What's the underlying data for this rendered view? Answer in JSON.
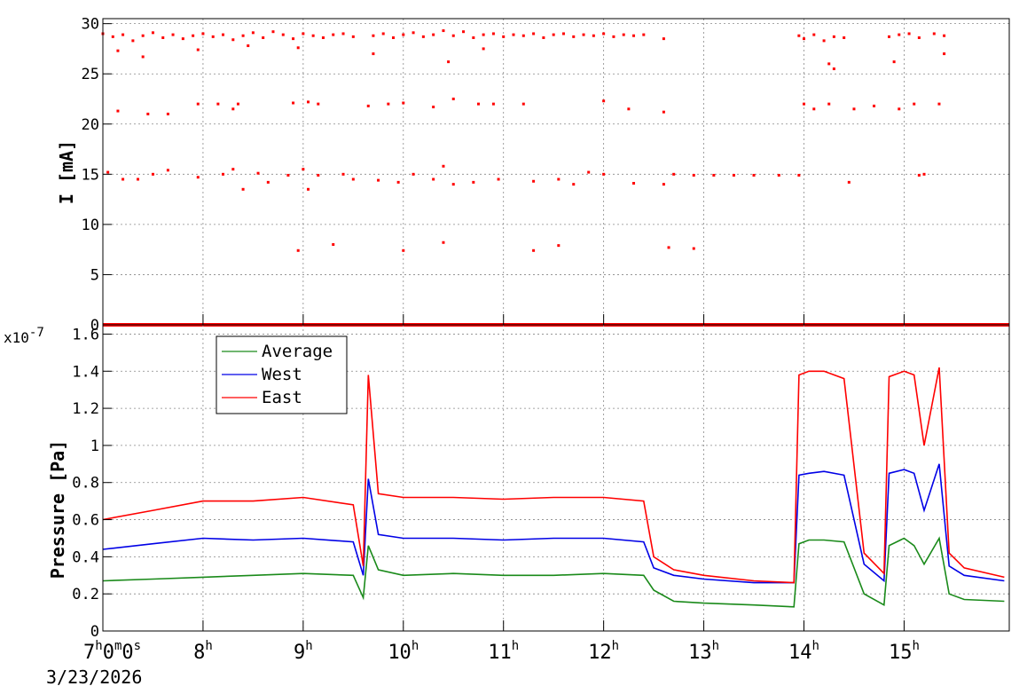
{
  "chart_data": [
    {
      "type": "scatter",
      "ylabel": "I [mA]",
      "ylim": [
        0,
        30.5
      ],
      "yticks": [
        0,
        5,
        10,
        15,
        20,
        25,
        30
      ],
      "grid": true,
      "xlim_hours": [
        7.0,
        16.05
      ],
      "series": [
        {
          "color": "#ff0000",
          "points": [
            [
              7.0,
              29.0
            ],
            [
              7.1,
              28.7
            ],
            [
              7.2,
              28.9
            ],
            [
              7.3,
              28.3
            ],
            [
              7.4,
              28.8
            ],
            [
              7.5,
              29.1
            ],
            [
              7.6,
              28.6
            ],
            [
              7.7,
              28.9
            ],
            [
              7.8,
              28.5
            ],
            [
              7.9,
              28.8
            ],
            [
              8.0,
              29.0
            ],
            [
              8.1,
              28.7
            ],
            [
              8.2,
              28.9
            ],
            [
              8.3,
              28.4
            ],
            [
              8.4,
              28.8
            ],
            [
              8.5,
              29.1
            ],
            [
              8.6,
              28.6
            ],
            [
              8.7,
              29.2
            ],
            [
              8.8,
              28.9
            ],
            [
              8.9,
              28.5
            ],
            [
              9.0,
              29.0
            ],
            [
              9.1,
              28.8
            ],
            [
              9.2,
              28.6
            ],
            [
              9.3,
              28.9
            ],
            [
              9.4,
              29.0
            ],
            [
              9.5,
              28.7
            ],
            [
              9.7,
              28.8
            ],
            [
              9.8,
              29.0
            ],
            [
              9.9,
              28.6
            ],
            [
              10.0,
              28.9
            ],
            [
              10.1,
              29.1
            ],
            [
              10.2,
              28.7
            ],
            [
              10.3,
              28.9
            ],
            [
              10.4,
              29.3
            ],
            [
              10.5,
              28.8
            ],
            [
              10.6,
              29.2
            ],
            [
              10.7,
              28.6
            ],
            [
              10.8,
              28.9
            ],
            [
              10.9,
              29.0
            ],
            [
              11.0,
              28.7
            ],
            [
              11.1,
              28.9
            ],
            [
              11.2,
              28.8
            ],
            [
              11.3,
              29.0
            ],
            [
              11.4,
              28.6
            ],
            [
              11.5,
              28.9
            ],
            [
              11.6,
              29.0
            ],
            [
              11.7,
              28.7
            ],
            [
              11.8,
              28.9
            ],
            [
              11.9,
              28.8
            ],
            [
              12.0,
              29.0
            ],
            [
              12.1,
              28.7
            ],
            [
              12.2,
              28.9
            ],
            [
              12.3,
              28.8
            ],
            [
              12.4,
              28.9
            ],
            [
              12.6,
              28.5
            ],
            [
              13.95,
              28.8
            ],
            [
              14.0,
              28.5
            ],
            [
              14.1,
              28.9
            ],
            [
              14.2,
              28.3
            ],
            [
              14.3,
              28.7
            ],
            [
              14.4,
              28.6
            ],
            [
              14.85,
              28.7
            ],
            [
              14.95,
              28.9
            ],
            [
              15.05,
              29.0
            ],
            [
              15.15,
              28.6
            ],
            [
              15.3,
              29.0
            ],
            [
              15.4,
              28.8
            ],
            [
              7.15,
              27.3
            ],
            [
              7.4,
              26.7
            ],
            [
              7.95,
              27.4
            ],
            [
              8.45,
              27.8
            ],
            [
              8.95,
              27.6
            ],
            [
              9.7,
              27.0
            ],
            [
              10.45,
              26.2
            ],
            [
              10.8,
              27.5
            ],
            [
              14.25,
              26.0
            ],
            [
              14.3,
              25.5
            ],
            [
              14.9,
              26.2
            ],
            [
              15.4,
              27.0
            ],
            [
              7.15,
              21.3
            ],
            [
              7.45,
              21.0
            ],
            [
              7.65,
              21.0
            ],
            [
              7.95,
              22.0
            ],
            [
              8.15,
              22.0
            ],
            [
              8.3,
              21.5
            ],
            [
              8.35,
              22.0
            ],
            [
              8.9,
              22.1
            ],
            [
              9.05,
              22.2
            ],
            [
              9.15,
              22.0
            ],
            [
              9.65,
              21.8
            ],
            [
              9.85,
              22.0
            ],
            [
              10.0,
              22.1
            ],
            [
              10.3,
              21.7
            ],
            [
              10.5,
              22.5
            ],
            [
              10.75,
              22.0
            ],
            [
              10.9,
              22.0
            ],
            [
              11.2,
              22.0
            ],
            [
              12.0,
              22.3
            ],
            [
              12.25,
              21.5
            ],
            [
              12.6,
              21.2
            ],
            [
              14.0,
              22.0
            ],
            [
              14.1,
              21.5
            ],
            [
              14.25,
              22.0
            ],
            [
              14.5,
              21.5
            ],
            [
              14.7,
              21.8
            ],
            [
              14.95,
              21.5
            ],
            [
              15.1,
              22.0
            ],
            [
              15.35,
              22.0
            ],
            [
              7.05,
              15.2
            ],
            [
              7.2,
              14.5
            ],
            [
              7.35,
              14.5
            ],
            [
              7.5,
              15.0
            ],
            [
              7.65,
              15.4
            ],
            [
              7.95,
              14.7
            ],
            [
              8.2,
              15.0
            ],
            [
              8.3,
              15.5
            ],
            [
              8.4,
              13.5
            ],
            [
              8.55,
              15.1
            ],
            [
              8.65,
              14.2
            ],
            [
              8.85,
              14.9
            ],
            [
              9.0,
              15.5
            ],
            [
              9.05,
              13.5
            ],
            [
              9.15,
              14.9
            ],
            [
              9.4,
              15.0
            ],
            [
              9.5,
              14.5
            ],
            [
              9.75,
              14.4
            ],
            [
              9.95,
              14.2
            ],
            [
              10.1,
              15.0
            ],
            [
              10.3,
              14.5
            ],
            [
              10.4,
              15.8
            ],
            [
              10.5,
              14.0
            ],
            [
              10.7,
              14.2
            ],
            [
              10.95,
              14.5
            ],
            [
              11.3,
              14.3
            ],
            [
              11.55,
              14.5
            ],
            [
              11.7,
              14.0
            ],
            [
              11.85,
              15.2
            ],
            [
              12.0,
              15.0
            ],
            [
              12.3,
              14.1
            ],
            [
              12.6,
              14.0
            ],
            [
              12.7,
              15.0
            ],
            [
              12.9,
              14.9
            ],
            [
              13.1,
              14.9
            ],
            [
              13.3,
              14.9
            ],
            [
              13.5,
              14.9
            ],
            [
              13.75,
              14.9
            ],
            [
              13.95,
              14.9
            ],
            [
              14.45,
              14.2
            ],
            [
              15.15,
              14.9
            ],
            [
              15.2,
              15.0
            ],
            [
              8.95,
              7.4
            ],
            [
              9.3,
              8.0
            ],
            [
              10.0,
              7.4
            ],
            [
              10.4,
              8.2
            ],
            [
              11.3,
              7.4
            ],
            [
              11.55,
              7.9
            ],
            [
              12.65,
              7.7
            ],
            [
              12.9,
              7.6
            ]
          ]
        }
      ]
    },
    {
      "type": "line",
      "ylabel": "Pressure [Pa]",
      "exponent_label": "x10",
      "exponent_sup": "-7",
      "ylim": [
        0,
        1.65
      ],
      "yticks": [
        0,
        0.2,
        0.4,
        0.6,
        0.8,
        1,
        1.2,
        1.4,
        1.6
      ],
      "ytick_labels": [
        "0",
        "0.2",
        "0.4",
        "0.6",
        "0.8",
        "1",
        "1.2",
        "1.4",
        "1.6"
      ],
      "grid": true,
      "legend_position": "top-left",
      "xlim_hours": [
        7.0,
        16.05
      ],
      "x_ticks": [
        {
          "base": "7",
          "sup": "h",
          "mid": "0",
          "sup2": "m",
          "mid2": "0",
          "sup3": "s",
          "h": 7
        },
        {
          "base": "8",
          "sup": "h",
          "h": 8
        },
        {
          "base": "9",
          "sup": "h",
          "h": 9
        },
        {
          "base": "10",
          "sup": "h",
          "h": 10
        },
        {
          "base": "11",
          "sup": "h",
          "h": 11
        },
        {
          "base": "12",
          "sup": "h",
          "h": 12
        },
        {
          "base": "13",
          "sup": "h",
          "h": 13
        },
        {
          "base": "14",
          "sup": "h",
          "h": 14
        },
        {
          "base": "15",
          "sup": "h",
          "h": 15
        }
      ],
      "date_label": "3/23/2026",
      "series": [
        {
          "name": "Average",
          "color": "#1a8a1a",
          "x": [
            7.0,
            7.5,
            8.0,
            8.5,
            9.0,
            9.5,
            9.6,
            9.65,
            9.75,
            10.0,
            10.5,
            11.0,
            11.5,
            12.0,
            12.4,
            12.5,
            12.7,
            13.0,
            13.5,
            13.9,
            13.95,
            14.05,
            14.2,
            14.4,
            14.6,
            14.8,
            14.85,
            15.0,
            15.1,
            15.2,
            15.35,
            15.45,
            15.6,
            16.0
          ],
          "y": [
            0.27,
            0.28,
            0.29,
            0.3,
            0.31,
            0.3,
            0.18,
            0.46,
            0.33,
            0.3,
            0.31,
            0.3,
            0.3,
            0.31,
            0.3,
            0.22,
            0.16,
            0.15,
            0.14,
            0.13,
            0.47,
            0.49,
            0.49,
            0.48,
            0.2,
            0.14,
            0.46,
            0.5,
            0.46,
            0.36,
            0.5,
            0.2,
            0.17,
            0.16
          ]
        },
        {
          "name": "West",
          "color": "#0000e6",
          "x": [
            7.0,
            7.5,
            8.0,
            8.5,
            9.0,
            9.5,
            9.6,
            9.65,
            9.75,
            10.0,
            10.5,
            11.0,
            11.5,
            12.0,
            12.4,
            12.5,
            12.7,
            13.0,
            13.5,
            13.9,
            13.95,
            14.05,
            14.2,
            14.4,
            14.6,
            14.8,
            14.85,
            15.0,
            15.1,
            15.2,
            15.35,
            15.45,
            15.6,
            16.0
          ],
          "y": [
            0.44,
            0.47,
            0.5,
            0.49,
            0.5,
            0.48,
            0.3,
            0.82,
            0.52,
            0.5,
            0.5,
            0.49,
            0.5,
            0.5,
            0.48,
            0.34,
            0.3,
            0.28,
            0.26,
            0.26,
            0.84,
            0.85,
            0.86,
            0.84,
            0.36,
            0.27,
            0.85,
            0.87,
            0.85,
            0.65,
            0.9,
            0.35,
            0.3,
            0.27
          ]
        },
        {
          "name": "East",
          "color": "#ff0000",
          "x": [
            7.0,
            7.5,
            8.0,
            8.5,
            9.0,
            9.5,
            9.6,
            9.65,
            9.75,
            10.0,
            10.5,
            11.0,
            11.5,
            12.0,
            12.4,
            12.5,
            12.7,
            13.0,
            13.5,
            13.9,
            13.95,
            14.05,
            14.2,
            14.4,
            14.6,
            14.8,
            14.85,
            15.0,
            15.1,
            15.2,
            15.35,
            15.45,
            15.6,
            16.0
          ],
          "y": [
            0.6,
            0.65,
            0.7,
            0.7,
            0.72,
            0.68,
            0.35,
            1.38,
            0.74,
            0.72,
            0.72,
            0.71,
            0.72,
            0.72,
            0.7,
            0.4,
            0.33,
            0.3,
            0.27,
            0.26,
            1.38,
            1.4,
            1.4,
            1.36,
            0.42,
            0.31,
            1.37,
            1.4,
            1.38,
            1.0,
            1.42,
            0.42,
            0.34,
            0.29
          ]
        }
      ]
    }
  ]
}
